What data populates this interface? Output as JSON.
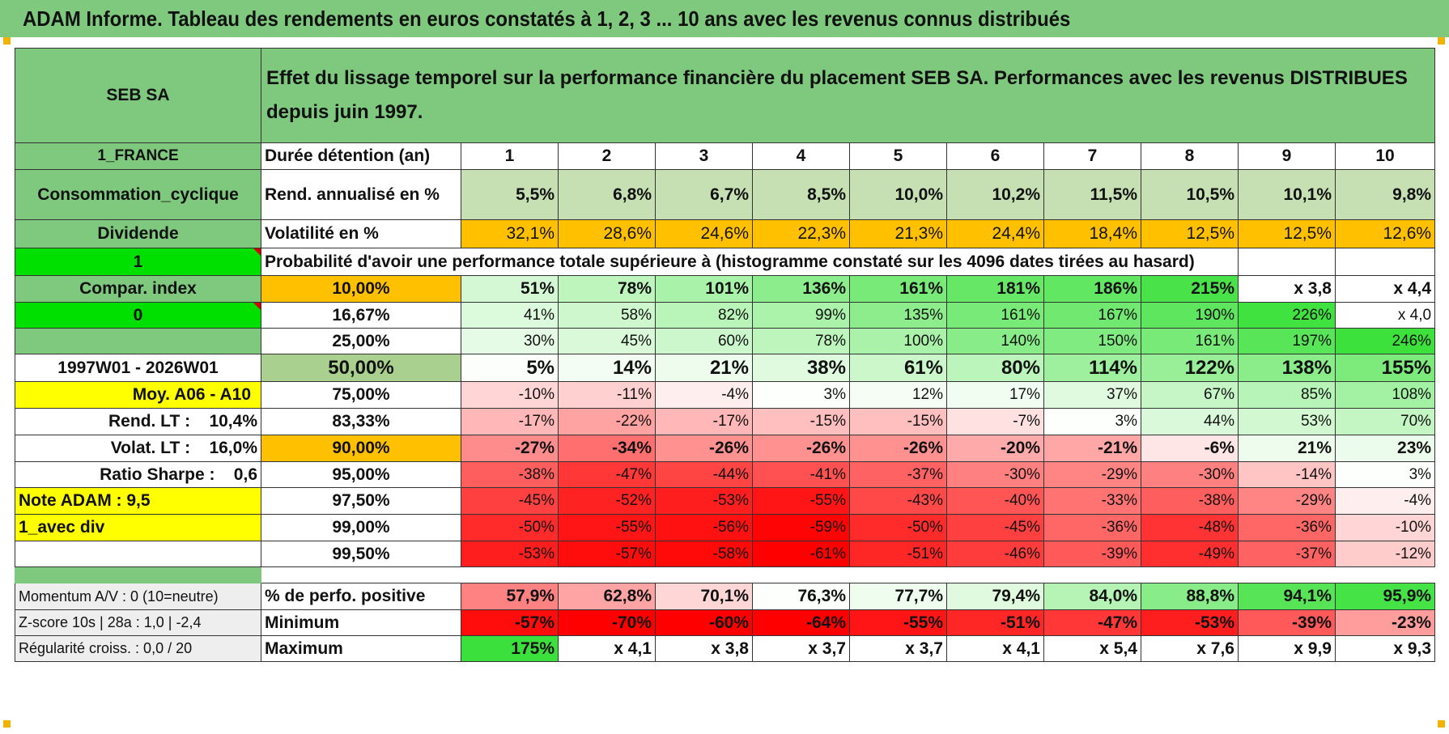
{
  "title": "ADAM Informe. Tableau des rendements en euros constatés à 1, 2, 3 ... 10 ans avec les revenus connus distribués",
  "company": "SEB SA",
  "header_text": "Effet du lissage temporel sur la performance financière du placement SEB SA. Performances avec les revenus DISTRIBUES depuis juin 1997.",
  "side": {
    "country": "1_FRANCE",
    "sector": "Consommation_cyclique",
    "type": "Dividende",
    "flag1": "1",
    "compar": "Compar. index",
    "flag0": "0",
    "period": "1997W01 - 2026W01",
    "moy": "Moy. A06 - A10",
    "rend_lt": "Rend. LT :    10,4%",
    "volat_lt": "Volat. LT :    16,0%",
    "sharpe": "Ratio Sharpe :    0,6",
    "note": "Note ADAM : 9,5",
    "avec_div": "1_avec div",
    "momentum": "Momentum A/V : 0 (10=neutre)",
    "zscore": "Z-score 10s | 28a : 1,0 | -2,4",
    "regularite": "Régularité croiss. : 0,0 / 20"
  },
  "rows": {
    "duree_label": "Durée détention (an)",
    "years": [
      "1",
      "2",
      "3",
      "4",
      "5",
      "6",
      "7",
      "8",
      "9",
      "10"
    ],
    "rend_label": "Rend. annualisé en %",
    "rend": [
      "5,5%",
      "6,8%",
      "6,7%",
      "8,5%",
      "10,0%",
      "10,2%",
      "11,5%",
      "10,5%",
      "10,1%",
      "9,8%"
    ],
    "vol_label": "Volatilité en %",
    "vol": [
      "32,1%",
      "28,6%",
      "24,6%",
      "22,3%",
      "21,3%",
      "24,4%",
      "18,4%",
      "12,5%",
      "12,5%",
      "12,6%"
    ],
    "prob_label": "Probabilité d'avoir une performance totale supérieure à (histogramme constaté sur les 4096 dates tirées au hasard)"
  },
  "probability": [
    {
      "pct": "10,00%",
      "vals": [
        "51%",
        "78%",
        "101%",
        "136%",
        "161%",
        "181%",
        "186%",
        "215%",
        "x 3,8",
        "x 4,4"
      ]
    },
    {
      "pct": "16,67%",
      "vals": [
        "41%",
        "58%",
        "82%",
        "99%",
        "135%",
        "161%",
        "167%",
        "190%",
        "226%",
        "x 4,0"
      ]
    },
    {
      "pct": "25,00%",
      "vals": [
        "30%",
        "45%",
        "60%",
        "78%",
        "100%",
        "140%",
        "150%",
        "161%",
        "197%",
        "246%"
      ]
    },
    {
      "pct": "50,00%",
      "vals": [
        "5%",
        "14%",
        "21%",
        "38%",
        "61%",
        "80%",
        "114%",
        "122%",
        "138%",
        "155%"
      ]
    },
    {
      "pct": "75,00%",
      "vals": [
        "-10%",
        "-11%",
        "-4%",
        "3%",
        "12%",
        "17%",
        "37%",
        "67%",
        "85%",
        "108%"
      ]
    },
    {
      "pct": "83,33%",
      "vals": [
        "-17%",
        "-22%",
        "-17%",
        "-15%",
        "-15%",
        "-7%",
        "3%",
        "44%",
        "53%",
        "70%"
      ]
    },
    {
      "pct": "90,00%",
      "vals": [
        "-27%",
        "-34%",
        "-26%",
        "-26%",
        "-26%",
        "-20%",
        "-21%",
        "-6%",
        "21%",
        "23%"
      ]
    },
    {
      "pct": "95,00%",
      "vals": [
        "-38%",
        "-47%",
        "-44%",
        "-41%",
        "-37%",
        "-30%",
        "-29%",
        "-30%",
        "-14%",
        "3%"
      ]
    },
    {
      "pct": "97,50%",
      "vals": [
        "-45%",
        "-52%",
        "-53%",
        "-55%",
        "-43%",
        "-40%",
        "-33%",
        "-38%",
        "-29%",
        "-4%"
      ]
    },
    {
      "pct": "99,00%",
      "vals": [
        "-50%",
        "-55%",
        "-56%",
        "-59%",
        "-50%",
        "-45%",
        "-36%",
        "-48%",
        "-36%",
        "-10%"
      ]
    },
    {
      "pct": "99,50%",
      "vals": [
        "-53%",
        "-57%",
        "-58%",
        "-61%",
        "-51%",
        "-46%",
        "-39%",
        "-49%",
        "-37%",
        "-12%"
      ]
    }
  ],
  "stats": {
    "positive_label": "% de perfo. positive",
    "positive": [
      "57,9%",
      "62,8%",
      "70,1%",
      "76,3%",
      "77,7%",
      "79,4%",
      "84,0%",
      "88,8%",
      "94,1%",
      "95,9%"
    ],
    "min_label": "Minimum",
    "min": [
      "-57%",
      "-70%",
      "-60%",
      "-64%",
      "-55%",
      "-51%",
      "-47%",
      "-53%",
      "-39%",
      "-23%"
    ],
    "max_label": "Maximum",
    "max": [
      "175%",
      "x 4,1",
      "x 3,8",
      "x 3,7",
      "x 3,7",
      "x 4,1",
      "x 5,4",
      "x 7,6",
      "x 9,9",
      "x 9,3"
    ]
  },
  "colors": {
    "green_header": "#7fc97f",
    "bright_green": "#00e000",
    "yellow": "#ffff00",
    "orange": "#ffc000",
    "red_text": "#d40000"
  }
}
